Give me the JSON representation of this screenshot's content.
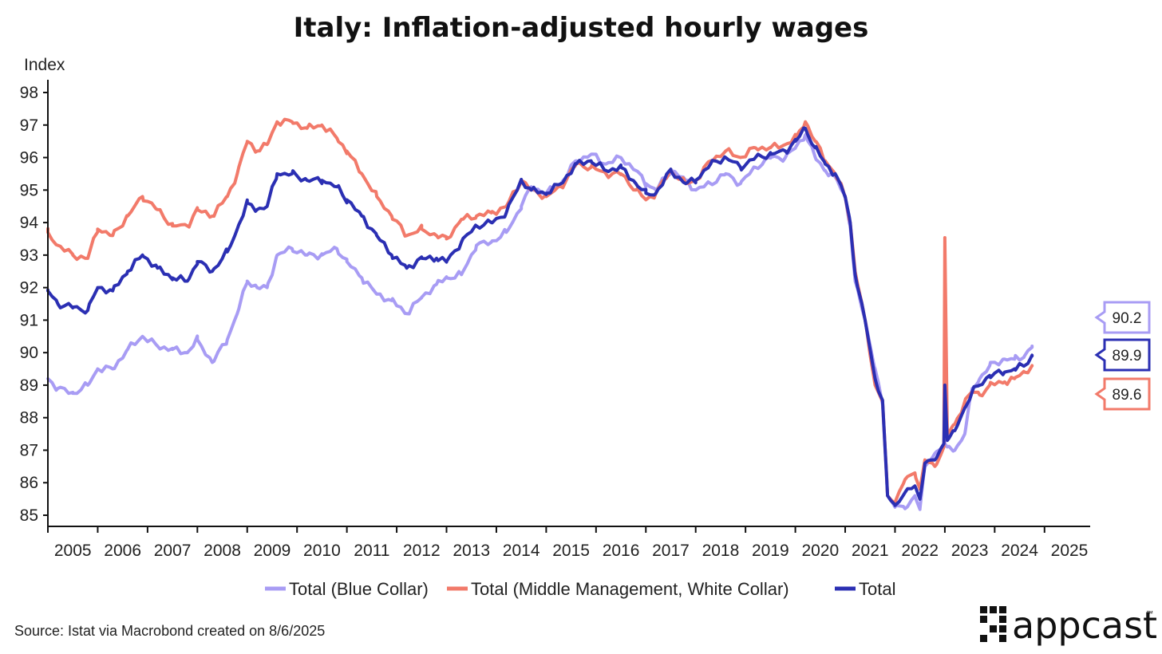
{
  "chart_data": {
    "type": "line",
    "title": "Italy: Inflation-adjusted hourly wages",
    "ylabel": "Index",
    "xlabel": "",
    "ylim": [
      85,
      98
    ],
    "yticks": [
      98,
      97,
      96,
      95,
      94,
      93,
      92,
      91,
      90,
      89,
      88,
      87,
      86,
      85
    ],
    "xlim": [
      2005.0,
      2025.5
    ],
    "xtick_labels": [
      "2005",
      "2006",
      "2007",
      "2008",
      "2009",
      "2010",
      "2011",
      "2012",
      "2013",
      "2014",
      "2015",
      "2016",
      "2017",
      "2018",
      "2019",
      "2020",
      "2021",
      "2022",
      "2023",
      "2024",
      "2025"
    ],
    "x_start": 2005.0,
    "x_step": 0.0833333,
    "series": [
      {
        "name": "Total (Blue Collar)",
        "color": "#a89cf4",
        "end_label": "90.2",
        "anchors": [
          [
            2005.0,
            89.2
          ],
          [
            2005.2,
            88.9
          ],
          [
            2005.5,
            88.75
          ],
          [
            2005.8,
            89.0
          ],
          [
            2006.0,
            89.5
          ],
          [
            2006.3,
            89.5
          ],
          [
            2006.6,
            90.1
          ],
          [
            2006.9,
            90.5
          ],
          [
            2007.2,
            90.2
          ],
          [
            2007.5,
            90.1
          ],
          [
            2007.8,
            90.0
          ],
          [
            2008.0,
            90.4
          ],
          [
            2008.3,
            89.7
          ],
          [
            2008.6,
            90.4
          ],
          [
            2008.8,
            91.2
          ],
          [
            2009.0,
            92.2
          ],
          [
            2009.2,
            92.0
          ],
          [
            2009.4,
            92.0
          ],
          [
            2009.6,
            93.0
          ],
          [
            2009.9,
            93.2
          ],
          [
            2010.2,
            93.0
          ],
          [
            2010.5,
            93.0
          ],
          [
            2010.8,
            93.2
          ],
          [
            2011.0,
            92.8
          ],
          [
            2011.3,
            92.3
          ],
          [
            2011.6,
            91.8
          ],
          [
            2011.9,
            91.6
          ],
          [
            2012.2,
            91.2
          ],
          [
            2012.5,
            91.7
          ],
          [
            2012.8,
            92.1
          ],
          [
            2013.0,
            92.3
          ],
          [
            2013.3,
            92.4
          ],
          [
            2013.6,
            93.3
          ],
          [
            2013.9,
            93.4
          ],
          [
            2014.2,
            93.7
          ],
          [
            2014.5,
            94.5
          ],
          [
            2014.7,
            95.1
          ],
          [
            2015.0,
            94.9
          ],
          [
            2015.3,
            95.2
          ],
          [
            2015.6,
            95.9
          ],
          [
            2015.9,
            96.1
          ],
          [
            2016.2,
            95.8
          ],
          [
            2016.5,
            96.0
          ],
          [
            2016.8,
            95.6
          ],
          [
            2017.0,
            95.2
          ],
          [
            2017.2,
            95.0
          ],
          [
            2017.5,
            95.6
          ],
          [
            2017.8,
            95.3
          ],
          [
            2018.0,
            95.0
          ],
          [
            2018.3,
            95.2
          ],
          [
            2018.6,
            95.5
          ],
          [
            2018.9,
            95.2
          ],
          [
            2019.2,
            95.7
          ],
          [
            2019.5,
            96.0
          ],
          [
            2019.8,
            96.0
          ],
          [
            2020.0,
            96.3
          ],
          [
            2020.2,
            96.7
          ],
          [
            2020.4,
            96.0
          ],
          [
            2020.6,
            95.6
          ],
          [
            2020.8,
            95.4
          ],
          [
            2021.0,
            94.8
          ],
          [
            2021.1,
            93.9
          ],
          [
            2021.2,
            92.2
          ],
          [
            2021.4,
            91.0
          ],
          [
            2021.6,
            89.5
          ],
          [
            2021.75,
            88.4
          ],
          [
            2021.85,
            85.6
          ],
          [
            2022.0,
            85.3
          ],
          [
            2022.2,
            85.2
          ],
          [
            2022.4,
            85.6
          ],
          [
            2022.5,
            85.2
          ],
          [
            2022.6,
            86.5
          ],
          [
            2022.8,
            86.9
          ],
          [
            2023.0,
            87.2
          ],
          [
            2023.05,
            87.1
          ],
          [
            2023.2,
            87.0
          ],
          [
            2023.4,
            87.5
          ],
          [
            2023.55,
            88.9
          ],
          [
            2023.7,
            89.2
          ],
          [
            2023.9,
            89.6
          ],
          [
            2024.2,
            89.8
          ],
          [
            2024.4,
            89.8
          ],
          [
            2024.6,
            89.9
          ],
          [
            2024.75,
            90.2
          ]
        ]
      },
      {
        "name": "Total (Middle Management, White Collar)",
        "color": "#f27a6a",
        "end_label": "89.6",
        "anchors": [
          [
            2005.0,
            93.7
          ],
          [
            2005.2,
            93.3
          ],
          [
            2005.5,
            93.0
          ],
          [
            2005.8,
            92.9
          ],
          [
            2006.0,
            93.8
          ],
          [
            2006.3,
            93.6
          ],
          [
            2006.6,
            94.2
          ],
          [
            2006.9,
            94.8
          ],
          [
            2007.2,
            94.4
          ],
          [
            2007.5,
            93.9
          ],
          [
            2007.8,
            93.9
          ],
          [
            2008.0,
            94.4
          ],
          [
            2008.3,
            94.2
          ],
          [
            2008.6,
            94.8
          ],
          [
            2008.8,
            95.5
          ],
          [
            2009.0,
            96.5
          ],
          [
            2009.2,
            96.2
          ],
          [
            2009.4,
            96.4
          ],
          [
            2009.6,
            97.1
          ],
          [
            2009.9,
            97.1
          ],
          [
            2010.2,
            96.9
          ],
          [
            2010.5,
            97.0
          ],
          [
            2010.8,
            96.6
          ],
          [
            2011.0,
            96.2
          ],
          [
            2011.3,
            95.5
          ],
          [
            2011.6,
            94.8
          ],
          [
            2011.9,
            94.2
          ],
          [
            2012.2,
            93.6
          ],
          [
            2012.5,
            93.8
          ],
          [
            2012.8,
            93.6
          ],
          [
            2013.0,
            93.5
          ],
          [
            2013.3,
            94.1
          ],
          [
            2013.6,
            94.2
          ],
          [
            2013.9,
            94.3
          ],
          [
            2014.2,
            94.5
          ],
          [
            2014.5,
            95.3
          ],
          [
            2014.7,
            95.0
          ],
          [
            2015.0,
            94.8
          ],
          [
            2015.3,
            95.1
          ],
          [
            2015.6,
            95.8
          ],
          [
            2015.9,
            95.7
          ],
          [
            2016.2,
            95.5
          ],
          [
            2016.5,
            95.5
          ],
          [
            2016.8,
            95.0
          ],
          [
            2017.0,
            94.7
          ],
          [
            2017.2,
            94.9
          ],
          [
            2017.5,
            95.6
          ],
          [
            2017.8,
            95.2
          ],
          [
            2018.0,
            95.3
          ],
          [
            2018.3,
            95.9
          ],
          [
            2018.6,
            96.2
          ],
          [
            2018.9,
            96.0
          ],
          [
            2019.2,
            96.3
          ],
          [
            2019.5,
            96.3
          ],
          [
            2019.8,
            96.4
          ],
          [
            2020.0,
            96.6
          ],
          [
            2020.2,
            97.1
          ],
          [
            2020.4,
            96.5
          ],
          [
            2020.6,
            95.9
          ],
          [
            2020.8,
            95.5
          ],
          [
            2021.0,
            94.8
          ],
          [
            2021.1,
            94.0
          ],
          [
            2021.2,
            92.5
          ],
          [
            2021.4,
            91.0
          ],
          [
            2021.6,
            89.0
          ],
          [
            2021.75,
            88.5
          ],
          [
            2021.85,
            85.6
          ],
          [
            2022.0,
            85.4
          ],
          [
            2022.2,
            86.1
          ],
          [
            2022.4,
            86.3
          ],
          [
            2022.5,
            85.8
          ],
          [
            2022.6,
            86.7
          ],
          [
            2022.8,
            86.5
          ],
          [
            2022.98,
            87.1
          ],
          [
            2023.0,
            93.5
          ],
          [
            2023.05,
            87.5
          ],
          [
            2023.2,
            87.8
          ],
          [
            2023.4,
            88.5
          ],
          [
            2023.55,
            88.8
          ],
          [
            2023.7,
            88.7
          ],
          [
            2023.9,
            89.0
          ],
          [
            2024.2,
            89.1
          ],
          [
            2024.4,
            89.2
          ],
          [
            2024.6,
            89.4
          ],
          [
            2024.75,
            89.6
          ]
        ]
      },
      {
        "name": "Total",
        "color": "#2b2fb3",
        "end_label": "89.9",
        "anchors": [
          [
            2005.0,
            91.9
          ],
          [
            2005.2,
            91.5
          ],
          [
            2005.5,
            91.4
          ],
          [
            2005.8,
            91.3
          ],
          [
            2006.0,
            92.0
          ],
          [
            2006.3,
            91.9
          ],
          [
            2006.6,
            92.5
          ],
          [
            2006.9,
            93.0
          ],
          [
            2007.2,
            92.6
          ],
          [
            2007.5,
            92.3
          ],
          [
            2007.8,
            92.2
          ],
          [
            2008.0,
            92.8
          ],
          [
            2008.3,
            92.5
          ],
          [
            2008.6,
            93.1
          ],
          [
            2008.8,
            93.8
          ],
          [
            2009.0,
            94.6
          ],
          [
            2009.2,
            94.4
          ],
          [
            2009.4,
            94.5
          ],
          [
            2009.6,
            95.5
          ],
          [
            2009.9,
            95.5
          ],
          [
            2010.2,
            95.3
          ],
          [
            2010.5,
            95.3
          ],
          [
            2010.8,
            95.1
          ],
          [
            2011.0,
            94.7
          ],
          [
            2011.3,
            94.2
          ],
          [
            2011.6,
            93.6
          ],
          [
            2011.9,
            93.0
          ],
          [
            2012.2,
            92.6
          ],
          [
            2012.5,
            92.9
          ],
          [
            2012.8,
            92.9
          ],
          [
            2013.0,
            92.8
          ],
          [
            2013.3,
            93.4
          ],
          [
            2013.6,
            93.9
          ],
          [
            2013.9,
            94.0
          ],
          [
            2014.2,
            94.3
          ],
          [
            2014.5,
            95.3
          ],
          [
            2014.7,
            95.0
          ],
          [
            2015.0,
            94.9
          ],
          [
            2015.3,
            95.2
          ],
          [
            2015.6,
            95.8
          ],
          [
            2015.9,
            95.9
          ],
          [
            2016.2,
            95.6
          ],
          [
            2016.5,
            95.7
          ],
          [
            2016.8,
            95.2
          ],
          [
            2017.0,
            94.9
          ],
          [
            2017.2,
            94.9
          ],
          [
            2017.5,
            95.6
          ],
          [
            2017.8,
            95.2
          ],
          [
            2018.0,
            95.3
          ],
          [
            2018.3,
            95.8
          ],
          [
            2018.6,
            96.0
          ],
          [
            2018.9,
            95.7
          ],
          [
            2019.2,
            96.0
          ],
          [
            2019.5,
            96.1
          ],
          [
            2019.8,
            96.2
          ],
          [
            2020.0,
            96.5
          ],
          [
            2020.2,
            96.9
          ],
          [
            2020.4,
            96.3
          ],
          [
            2020.6,
            95.8
          ],
          [
            2020.8,
            95.5
          ],
          [
            2021.0,
            94.8
          ],
          [
            2021.1,
            94.0
          ],
          [
            2021.2,
            92.4
          ],
          [
            2021.4,
            91.0
          ],
          [
            2021.6,
            89.2
          ],
          [
            2021.75,
            88.5
          ],
          [
            2021.85,
            85.6
          ],
          [
            2022.0,
            85.3
          ],
          [
            2022.2,
            85.7
          ],
          [
            2022.4,
            85.9
          ],
          [
            2022.5,
            85.5
          ],
          [
            2022.6,
            86.6
          ],
          [
            2022.8,
            86.7
          ],
          [
            2022.98,
            87.2
          ],
          [
            2023.0,
            89.0
          ],
          [
            2023.05,
            87.3
          ],
          [
            2023.2,
            87.6
          ],
          [
            2023.4,
            88.3
          ],
          [
            2023.55,
            88.8
          ],
          [
            2023.7,
            89.0
          ],
          [
            2023.9,
            89.3
          ],
          [
            2024.2,
            89.4
          ],
          [
            2024.4,
            89.5
          ],
          [
            2024.6,
            89.6
          ],
          [
            2024.75,
            89.9
          ]
        ]
      }
    ]
  },
  "source": "Source: Istat via Macrobond created on 8/6/2025",
  "brand": {
    "name": "appcast",
    "tm": "™"
  },
  "icons": {
    "logo": "appcast-dot-grid-icon"
  }
}
